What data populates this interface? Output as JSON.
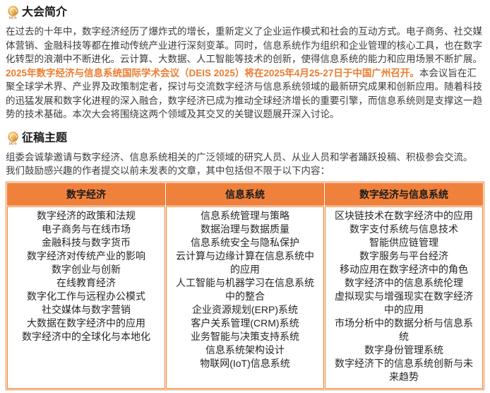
{
  "logo": {
    "label": "DEIS"
  },
  "colors": {
    "accent_orange": "#ED7D31",
    "table_header_bg": "#F0813C",
    "body_text": "#3D3D3D"
  },
  "intro": {
    "title": "大会简介",
    "paragraph": "在过去的十年中，数字经济经历了爆炸式的增长，重新定义了企业运作模式和社会的互动方式。电子商务、社交媒体营销、金融科技等都在推动传统产业进行深刻变革。同时，信息系统作为组织和企业管理的核心工具，也在数字化转型的浪潮中不断进化。云计算、大数据、人工智能等技术的创新，使得信息系统的能力和应用场景不断扩展。",
    "announcement_highlight": "2025年数字经济与信息系统国际学术会议（DEIS 2025）将在2025年4月25-27日于中国广州召开。",
    "announcement_rest": "本会议旨在汇聚全球学术界、产业界及政策制定者，探讨与交流数字经济与信息系统领域的最新研究成果和创新应用。随着科技的迅猛发展和数字化进程的深入融合，数字经济已成为推动全球经济增长的重要引擎，而信息系统则是支撑这一趋势的技术基础。本次大会将围绕这两个领域及其交叉的关键议题展开深入讨论。"
  },
  "call": {
    "title": "征稿主题",
    "paragraph_1": "组委会诚挚邀请与数字经济、信息系统相关的广泛领域的研究人员、从业人员和学者踊跃投稿、积极参会交流。",
    "paragraph_2": "我们鼓励感兴趣的作者提交以前未发表的文章，其中包括但不限于以下内容："
  },
  "topics": {
    "headers": [
      "数字经济",
      "信息系统",
      "数字经济与信息系统"
    ],
    "columns": [
      [
        "数字经济的政策和法规",
        "电子商务与在线市场",
        "金融科技与数字货币",
        "数字经济对传统产业的影响",
        "数字创业与创新",
        "在线教育经济",
        "数字化工作与远程办公模式",
        "社交媒体与数字营销",
        "大数据在数字经济中的应用",
        "数字经济中的全球化与本地化"
      ],
      [
        "信息系统管理与策略",
        "数据治理与数据质量",
        "信息系统安全与隐私保护",
        "云计算与边缘计算在信息系统中的应用",
        "人工智能与机器学习在信息系统中的整合",
        "企业资源规划(ERP)系统",
        "客户关系管理(CRM)系统",
        "业务智能与决策支持系统",
        "信息系统架构设计",
        "物联网(IoT)信息系统"
      ],
      [
        "区块链技术在数字经济中的应用",
        "数字支付系统与信息技术",
        "智能供应链管理",
        "数字服务与平台经济",
        "移动应用在数字经济中的角色",
        "数字经济中的信息系统伦理",
        "虚拟现实与增强现实在数字经济中的应用",
        "市场分析中的数据分析与信息系统",
        "数字身份管理系统",
        "数字经济下的信息系统创新与未来趋势"
      ]
    ]
  }
}
